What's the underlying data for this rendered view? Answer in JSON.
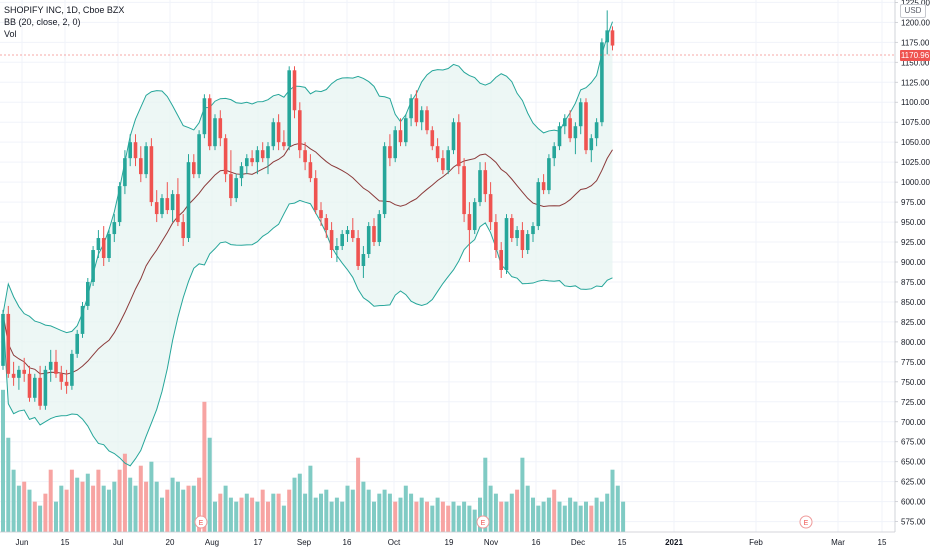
{
  "legend": {
    "symbol_line": "SHOPIFY INC, 1D, Cboe BZX",
    "bb_line": "BB (20, close, 2, 0)",
    "vol_line": "Vol"
  },
  "currency": "USD",
  "last_price_label": "1170.96",
  "earnings_marker": "E",
  "colors": {
    "up": "#26a69a",
    "down": "#ef5350",
    "vol_up": "#80cbc4",
    "vol_down": "#f7a4a2",
    "band": "#26a69a",
    "basis": "#8b3a3a",
    "band_fill": "#e6f4f1"
  },
  "chart_data": {
    "type": "candlestick",
    "y_axis": {
      "range": [
        562,
        1228
      ],
      "ticks": [
        575,
        600,
        625,
        650,
        675,
        700,
        725,
        750,
        775,
        800,
        825,
        850,
        875,
        900,
        925,
        950,
        975,
        1000,
        1025,
        1050,
        1075,
        1100,
        1125,
        1150,
        1175,
        1200,
        1225
      ]
    },
    "x_axis": {
      "ticks": [
        "Jun",
        "15",
        "Jul",
        "20",
        "Aug",
        "17",
        "Sep",
        "16",
        "Oct",
        "19",
        "Nov",
        "16",
        "Dec",
        "15",
        "2021",
        "Feb",
        "Mar",
        "15"
      ],
      "bold_ticks": [
        "2021"
      ]
    },
    "candles": [
      [
        770,
        840,
        765,
        835
      ],
      [
        835,
        845,
        755,
        760
      ],
      [
        760,
        775,
        745,
        755
      ],
      [
        755,
        770,
        740,
        765
      ],
      [
        765,
        780,
        750,
        760
      ],
      [
        760,
        770,
        725,
        730
      ],
      [
        730,
        760,
        725,
        755
      ],
      [
        755,
        770,
        715,
        720
      ],
      [
        720,
        770,
        715,
        765
      ],
      [
        765,
        790,
        750,
        775
      ],
      [
        775,
        790,
        755,
        760
      ],
      [
        760,
        770,
        740,
        750
      ],
      [
        750,
        765,
        735,
        745
      ],
      [
        745,
        790,
        740,
        785
      ],
      [
        785,
        815,
        780,
        810
      ],
      [
        810,
        850,
        805,
        845
      ],
      [
        845,
        880,
        840,
        875
      ],
      [
        875,
        920,
        870,
        915
      ],
      [
        915,
        940,
        905,
        930
      ],
      [
        930,
        945,
        895,
        905
      ],
      [
        905,
        940,
        900,
        935
      ],
      [
        935,
        960,
        925,
        950
      ],
      [
        950,
        1000,
        945,
        995
      ],
      [
        995,
        1040,
        985,
        1030
      ],
      [
        1030,
        1060,
        1020,
        1050
      ],
      [
        1050,
        1060,
        1020,
        1030
      ],
      [
        1030,
        1045,
        1000,
        1010
      ],
      [
        1010,
        1050,
        1005,
        1045
      ],
      [
        1045,
        1055,
        970,
        975
      ],
      [
        975,
        990,
        950,
        960
      ],
      [
        960,
        985,
        955,
        980
      ],
      [
        980,
        1000,
        960,
        965
      ],
      [
        965,
        990,
        950,
        985
      ],
      [
        985,
        1005,
        945,
        950
      ],
      [
        950,
        960,
        920,
        930
      ],
      [
        930,
        1035,
        925,
        1025
      ],
      [
        1025,
        1035,
        1005,
        1010
      ],
      [
        1010,
        1065,
        1005,
        1060
      ],
      [
        1060,
        1110,
        1055,
        1105
      ],
      [
        1105,
        1110,
        1040,
        1045
      ],
      [
        1045,
        1085,
        1040,
        1080
      ],
      [
        1080,
        1090,
        1045,
        1055
      ],
      [
        1055,
        1060,
        1000,
        1010
      ],
      [
        1010,
        1040,
        970,
        980
      ],
      [
        980,
        1010,
        975,
        1005
      ],
      [
        1005,
        1025,
        995,
        1020
      ],
      [
        1020,
        1035,
        1010,
        1030
      ],
      [
        1030,
        1040,
        1020,
        1025
      ],
      [
        1025,
        1045,
        1010,
        1040
      ],
      [
        1040,
        1050,
        1025,
        1030
      ],
      [
        1030,
        1050,
        1010,
        1045
      ],
      [
        1045,
        1080,
        1040,
        1075
      ],
      [
        1075,
        1085,
        1040,
        1050
      ],
      [
        1050,
        1065,
        1040,
        1045
      ],
      [
        1045,
        1145,
        1040,
        1140
      ],
      [
        1140,
        1145,
        1080,
        1090
      ],
      [
        1090,
        1100,
        1030,
        1040
      ],
      [
        1040,
        1050,
        1015,
        1025
      ],
      [
        1025,
        1035,
        1000,
        1005
      ],
      [
        1005,
        1015,
        960,
        965
      ],
      [
        965,
        975,
        945,
        955
      ],
      [
        955,
        960,
        930,
        940
      ],
      [
        940,
        950,
        905,
        915
      ],
      [
        915,
        930,
        900,
        920
      ],
      [
        920,
        940,
        915,
        935
      ],
      [
        935,
        945,
        925,
        940
      ],
      [
        940,
        955,
        925,
        930
      ],
      [
        930,
        940,
        890,
        895
      ],
      [
        895,
        920,
        880,
        910
      ],
      [
        910,
        950,
        905,
        945
      ],
      [
        945,
        955,
        920,
        925
      ],
      [
        925,
        965,
        920,
        960
      ],
      [
        960,
        1050,
        955,
        1045
      ],
      [
        1045,
        1060,
        1020,
        1030
      ],
      [
        1030,
        1070,
        1025,
        1065
      ],
      [
        1065,
        1080,
        1045,
        1050
      ],
      [
        1050,
        1085,
        1045,
        1080
      ],
      [
        1080,
        1110,
        1070,
        1105
      ],
      [
        1105,
        1115,
        1070,
        1075
      ],
      [
        1075,
        1095,
        1065,
        1090
      ],
      [
        1090,
        1095,
        1060,
        1065
      ],
      [
        1065,
        1070,
        1040,
        1045
      ],
      [
        1045,
        1055,
        1025,
        1030
      ],
      [
        1030,
        1040,
        1010,
        1015
      ],
      [
        1015,
        1045,
        1010,
        1040
      ],
      [
        1040,
        1080,
        1035,
        1075
      ],
      [
        1075,
        1085,
        1010,
        1020
      ],
      [
        1020,
        1030,
        950,
        960
      ],
      [
        960,
        975,
        900,
        940
      ],
      [
        940,
        980,
        935,
        975
      ],
      [
        975,
        1025,
        970,
        1015
      ],
      [
        1015,
        1025,
        975,
        985
      ],
      [
        985,
        1000,
        940,
        950
      ],
      [
        950,
        960,
        905,
        915
      ],
      [
        915,
        925,
        880,
        890
      ],
      [
        890,
        960,
        885,
        955
      ],
      [
        955,
        960,
        925,
        930
      ],
      [
        930,
        945,
        920,
        940
      ],
      [
        940,
        950,
        905,
        915
      ],
      [
        915,
        940,
        910,
        935
      ],
      [
        935,
        950,
        925,
        945
      ],
      [
        945,
        1005,
        940,
        1000
      ],
      [
        1000,
        1010,
        985,
        990
      ],
      [
        990,
        1035,
        985,
        1030
      ],
      [
        1030,
        1050,
        1020,
        1045
      ],
      [
        1045,
        1075,
        1040,
        1070
      ],
      [
        1070,
        1085,
        1060,
        1080
      ],
      [
        1080,
        1090,
        1050,
        1055
      ],
      [
        1055,
        1075,
        1035,
        1070
      ],
      [
        1070,
        1105,
        1060,
        1100
      ],
      [
        1100,
        1105,
        1035,
        1040
      ],
      [
        1040,
        1060,
        1025,
        1055
      ],
      [
        1055,
        1080,
        1045,
        1075
      ],
      [
        1075,
        1180,
        1070,
        1175
      ],
      [
        1175,
        1215,
        1160,
        1190
      ],
      [
        1190,
        1195,
        1165,
        1171
      ]
    ],
    "volume": [
      [
        740,
        1
      ],
      [
        680,
        1
      ],
      [
        640,
        1
      ],
      [
        620,
        1
      ],
      [
        625,
        0
      ],
      [
        615,
        1
      ],
      [
        600,
        0
      ],
      [
        595,
        1
      ],
      [
        610,
        0
      ],
      [
        640,
        0
      ],
      [
        600,
        1
      ],
      [
        620,
        1
      ],
      [
        615,
        0
      ],
      [
        640,
        0
      ],
      [
        630,
        1
      ],
      [
        625,
        0
      ],
      [
        635,
        1
      ],
      [
        620,
        0
      ],
      [
        640,
        0
      ],
      [
        620,
        1
      ],
      [
        615,
        1
      ],
      [
        625,
        1
      ],
      [
        640,
        0
      ],
      [
        660,
        0
      ],
      [
        630,
        1
      ],
      [
        620,
        1
      ],
      [
        645,
        0
      ],
      [
        625,
        0
      ],
      [
        650,
        1
      ],
      [
        625,
        1
      ],
      [
        605,
        1
      ],
      [
        615,
        0
      ],
      [
        630,
        1
      ],
      [
        625,
        1
      ],
      [
        615,
        1
      ],
      [
        620,
        0
      ],
      [
        620,
        1
      ],
      [
        630,
        0
      ],
      [
        725,
        0
      ],
      [
        680,
        1
      ],
      [
        600,
        1
      ],
      [
        610,
        0
      ],
      [
        620,
        1
      ],
      [
        605,
        1
      ],
      [
        600,
        1
      ],
      [
        605,
        0
      ],
      [
        610,
        1
      ],
      [
        605,
        0
      ],
      [
        600,
        1
      ],
      [
        615,
        0
      ],
      [
        600,
        0
      ],
      [
        610,
        1
      ],
      [
        610,
        0
      ],
      [
        595,
        1
      ],
      [
        615,
        0
      ],
      [
        630,
        1
      ],
      [
        635,
        1
      ],
      [
        610,
        1
      ],
      [
        645,
        1
      ],
      [
        605,
        1
      ],
      [
        610,
        1
      ],
      [
        615,
        1
      ],
      [
        600,
        1
      ],
      [
        605,
        1
      ],
      [
        600,
        1
      ],
      [
        620,
        1
      ],
      [
        615,
        1
      ],
      [
        655,
        0
      ],
      [
        625,
        1
      ],
      [
        615,
        1
      ],
      [
        600,
        1
      ],
      [
        610,
        1
      ],
      [
        615,
        1
      ],
      [
        610,
        1
      ],
      [
        600,
        0
      ],
      [
        605,
        1
      ],
      [
        620,
        1
      ],
      [
        610,
        1
      ],
      [
        600,
        0
      ],
      [
        605,
        1
      ],
      [
        600,
        0
      ],
      [
        595,
        1
      ],
      [
        605,
        1
      ],
      [
        600,
        0
      ],
      [
        595,
        0
      ],
      [
        600,
        1
      ],
      [
        595,
        1
      ],
      [
        600,
        1
      ],
      [
        595,
        1
      ],
      [
        590,
        1
      ],
      [
        605,
        1
      ],
      [
        655,
        1
      ],
      [
        620,
        1
      ],
      [
        610,
        1
      ],
      [
        600,
        0
      ],
      [
        600,
        1
      ],
      [
        610,
        1
      ],
      [
        615,
        0
      ],
      [
        655,
        1
      ],
      [
        620,
        1
      ],
      [
        605,
        1
      ],
      [
        595,
        1
      ],
      [
        600,
        1
      ],
      [
        605,
        1
      ],
      [
        615,
        0
      ],
      [
        600,
        1
      ],
      [
        595,
        1
      ],
      [
        605,
        1
      ],
      [
        600,
        1
      ],
      [
        595,
        1
      ],
      [
        600,
        1
      ],
      [
        595,
        0
      ],
      [
        605,
        1
      ],
      [
        600,
        1
      ],
      [
        610,
        1
      ],
      [
        640,
        1
      ],
      [
        620,
        1
      ],
      [
        600,
        1
      ]
    ],
    "earnings_at": [
      "Jul 29",
      "Oct 29",
      "Feb 17"
    ]
  }
}
